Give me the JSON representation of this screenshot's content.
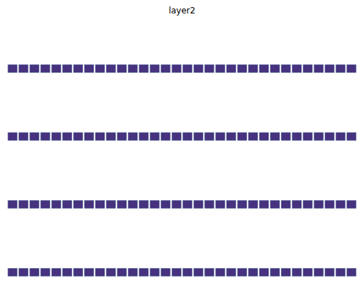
{
  "chart_data": {
    "type": "image_grid",
    "title": "layer2",
    "rows": 4,
    "columns": 32,
    "tick_labels": false
  }
}
